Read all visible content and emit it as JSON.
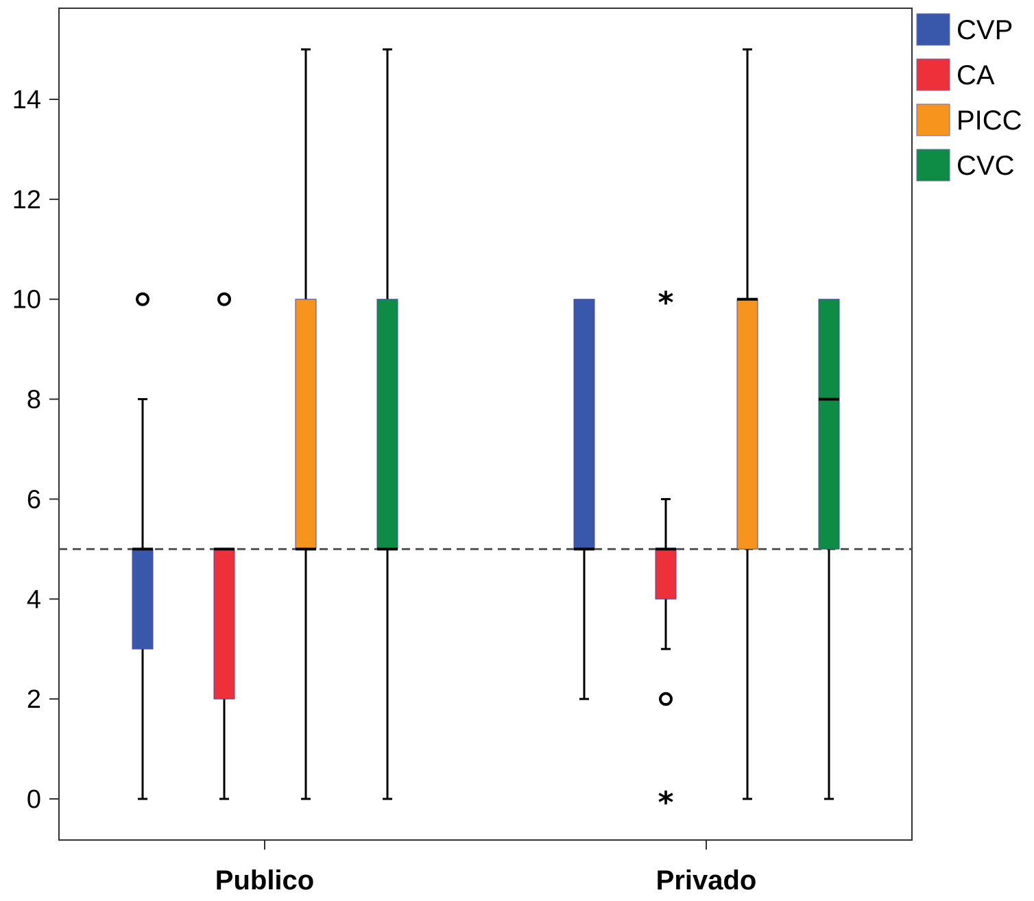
{
  "chart_data": {
    "type": "boxplot",
    "title": "",
    "xlabel": "",
    "ylabel": "",
    "ylim": [
      -0.8,
      15.8
    ],
    "yticks": [
      0,
      2,
      4,
      6,
      8,
      10,
      12,
      14
    ],
    "grid": false,
    "legend_position": "right",
    "reference_line": {
      "y": 5,
      "style": "dashed",
      "color": "#555555"
    },
    "categories": [
      "Publico",
      "Privado"
    ],
    "series": [
      {
        "name": "CVP",
        "color": "#3a58ab"
      },
      {
        "name": "CA",
        "color": "#ee303a"
      },
      {
        "name": "PICC",
        "color": "#f7941d"
      },
      {
        "name": "CVC",
        "color": "#0e8c45"
      }
    ],
    "boxes": [
      {
        "category": "Publico",
        "series": "CVP",
        "whisker_low": 0,
        "q1": 3,
        "median": 5,
        "q3": 5,
        "whisker_high": 8,
        "outliers": [
          {
            "value": 10,
            "symbol": "circle"
          }
        ]
      },
      {
        "category": "Publico",
        "series": "CA",
        "whisker_low": 0,
        "q1": 2,
        "median": 5,
        "q3": 5,
        "whisker_high": 5,
        "outliers": [
          {
            "value": 10,
            "symbol": "circle"
          }
        ]
      },
      {
        "category": "Publico",
        "series": "PICC",
        "whisker_low": 0,
        "q1": 5,
        "median": 5,
        "q3": 10,
        "whisker_high": 15,
        "outliers": []
      },
      {
        "category": "Publico",
        "series": "CVC",
        "whisker_low": 0,
        "q1": 5,
        "median": 5,
        "q3": 10,
        "whisker_high": 15,
        "outliers": []
      },
      {
        "category": "Privado",
        "series": "CVP",
        "whisker_low": 2,
        "q1": 5,
        "median": 5,
        "q3": 10,
        "whisker_high": 10,
        "outliers": []
      },
      {
        "category": "Privado",
        "series": "CA",
        "whisker_low": 3,
        "q1": 4,
        "median": 5,
        "q3": 5,
        "whisker_high": 6,
        "outliers": [
          {
            "value": 10,
            "symbol": "star"
          },
          {
            "value": 2,
            "symbol": "circle"
          },
          {
            "value": 0,
            "symbol": "star"
          }
        ]
      },
      {
        "category": "Privado",
        "series": "PICC",
        "whisker_low": 0,
        "q1": 5,
        "median": 10,
        "q3": 10,
        "whisker_high": 15,
        "outliers": []
      },
      {
        "category": "Privado",
        "series": "CVC",
        "whisker_low": 0,
        "q1": 5,
        "median": 8,
        "q3": 10,
        "whisker_high": 10,
        "outliers": []
      }
    ]
  }
}
